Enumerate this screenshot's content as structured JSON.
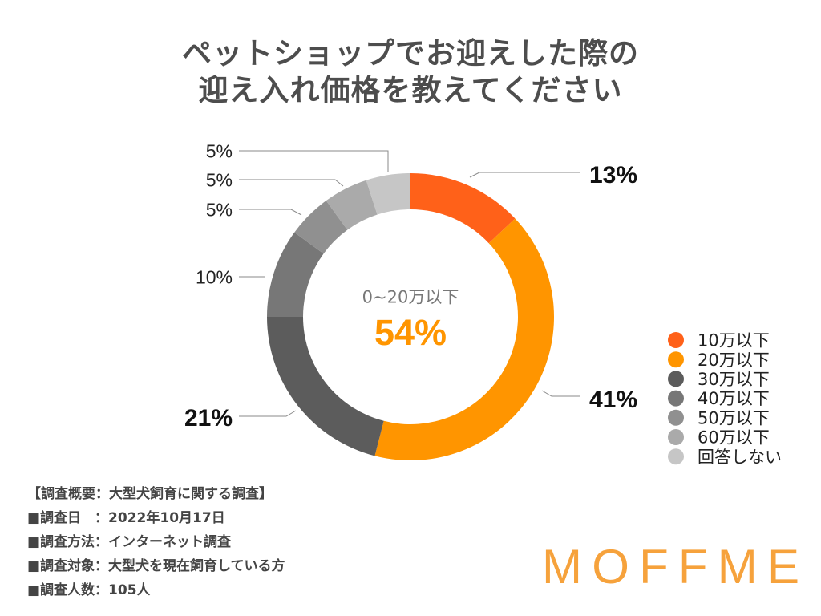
{
  "chart_data": {
    "type": "pie",
    "donut": true,
    "title": [
      "ペットショップでお迎えした際の",
      "迎え入れ価格を教えてください"
    ],
    "categories": [
      "10万以下",
      "20万以下",
      "30万以下",
      "40万以下",
      "50万以下",
      "60万以下",
      "回答しない"
    ],
    "values": [
      13,
      41,
      21,
      10,
      5,
      5,
      5
    ],
    "unit": "%",
    "colors": [
      "#FF6119",
      "#FF9500",
      "#5C5C5C",
      "#777777",
      "#909090",
      "#AAAAAA",
      "#C6C6C6"
    ],
    "legend_position": "right",
    "center_annotation": {
      "label": "0~20万以下",
      "value": "54%"
    }
  },
  "survey": {
    "heading": "【調査概要：大型犬飼育に関する調査】",
    "lines": [
      "■調査日　：2022年10月17日",
      "■調査方法：インターネット調査",
      "■調査対象：大型犬を現在飼育している方",
      "■調査人数：105人"
    ]
  },
  "logo": {
    "text": "MOFFME",
    "color": "#F6A23C"
  },
  "colors": {
    "title": "#4D4D4D",
    "accent": "#FF9500",
    "text": "#222222",
    "muted": "#777777",
    "leader": "#8A8A8A"
  }
}
